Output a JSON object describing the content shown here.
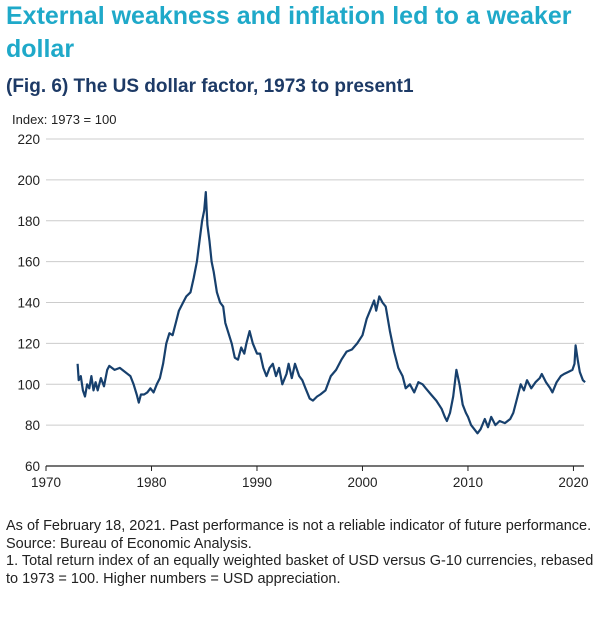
{
  "headline": "External weakness and inflation led to a weaker dollar",
  "chart_data": {
    "type": "line",
    "title": "(Fig. 6) The US dollar factor, 1973 to present1",
    "ylabel": "Index: 1973 = 100",
    "xlabel": "",
    "xlim": [
      1970,
      2021
    ],
    "ylim": [
      60,
      220
    ],
    "xticks": [
      1970,
      1980,
      1990,
      2000,
      2010,
      2020
    ],
    "yticks": [
      60,
      80,
      100,
      120,
      140,
      160,
      180,
      200,
      220
    ],
    "grid": "horizontal",
    "legend": "none",
    "colors": {
      "line": "#17406d",
      "grid": "#cccccc",
      "axis": "#222222"
    },
    "series": [
      {
        "values": [
          [
            1973.0,
            110
          ],
          [
            1973.1,
            102
          ],
          [
            1973.3,
            104
          ],
          [
            1973.5,
            97
          ],
          [
            1973.7,
            94
          ],
          [
            1973.9,
            100
          ],
          [
            1974.1,
            98
          ],
          [
            1974.3,
            104
          ],
          [
            1974.5,
            97
          ],
          [
            1974.7,
            101
          ],
          [
            1974.9,
            97
          ],
          [
            1975.2,
            103
          ],
          [
            1975.5,
            99
          ],
          [
            1975.8,
            107
          ],
          [
            1976.0,
            109
          ],
          [
            1976.5,
            107
          ],
          [
            1977.0,
            108
          ],
          [
            1977.5,
            106
          ],
          [
            1978.0,
            104
          ],
          [
            1978.3,
            100
          ],
          [
            1978.6,
            95
          ],
          [
            1978.8,
            91
          ],
          [
            1979.0,
            95
          ],
          [
            1979.3,
            95
          ],
          [
            1979.6,
            96
          ],
          [
            1979.9,
            98
          ],
          [
            1980.2,
            96
          ],
          [
            1980.5,
            100
          ],
          [
            1980.8,
            103
          ],
          [
            1981.1,
            110
          ],
          [
            1981.4,
            120
          ],
          [
            1981.7,
            125
          ],
          [
            1982.0,
            124
          ],
          [
            1982.3,
            130
          ],
          [
            1982.6,
            136
          ],
          [
            1983.0,
            140
          ],
          [
            1983.3,
            143
          ],
          [
            1983.7,
            145
          ],
          [
            1984.0,
            152
          ],
          [
            1984.3,
            160
          ],
          [
            1984.6,
            172
          ],
          [
            1984.8,
            180
          ],
          [
            1985.0,
            185
          ],
          [
            1985.15,
            194
          ],
          [
            1985.3,
            178
          ],
          [
            1985.5,
            170
          ],
          [
            1985.7,
            160
          ],
          [
            1985.9,
            155
          ],
          [
            1986.2,
            145
          ],
          [
            1986.5,
            140
          ],
          [
            1986.8,
            138
          ],
          [
            1987.0,
            130
          ],
          [
            1987.3,
            125
          ],
          [
            1987.6,
            120
          ],
          [
            1987.9,
            113
          ],
          [
            1988.2,
            112
          ],
          [
            1988.5,
            118
          ],
          [
            1988.8,
            115
          ],
          [
            1989.0,
            120
          ],
          [
            1989.3,
            126
          ],
          [
            1989.6,
            120
          ],
          [
            1990.0,
            115
          ],
          [
            1990.3,
            115
          ],
          [
            1990.6,
            108
          ],
          [
            1990.9,
            104
          ],
          [
            1991.2,
            108
          ],
          [
            1991.5,
            110
          ],
          [
            1991.8,
            104
          ],
          [
            1992.1,
            108
          ],
          [
            1992.4,
            100
          ],
          [
            1992.8,
            105
          ],
          [
            1993.0,
            110
          ],
          [
            1993.3,
            103
          ],
          [
            1993.6,
            110
          ],
          [
            1994.0,
            104
          ],
          [
            1994.3,
            102
          ],
          [
            1994.6,
            98
          ],
          [
            1995.0,
            93
          ],
          [
            1995.3,
            92
          ],
          [
            1995.7,
            94
          ],
          [
            1996.0,
            95
          ],
          [
            1996.5,
            97
          ],
          [
            1997.0,
            104
          ],
          [
            1997.5,
            107
          ],
          [
            1998.0,
            112
          ],
          [
            1998.5,
            116
          ],
          [
            1999.0,
            117
          ],
          [
            1999.5,
            120
          ],
          [
            2000.0,
            124
          ],
          [
            2000.4,
            132
          ],
          [
            2000.8,
            137
          ],
          [
            2001.1,
            141
          ],
          [
            2001.3,
            136
          ],
          [
            2001.6,
            143
          ],
          [
            2001.9,
            140
          ],
          [
            2002.2,
            138
          ],
          [
            2002.6,
            126
          ],
          [
            2003.0,
            116
          ],
          [
            2003.4,
            108
          ],
          [
            2003.8,
            104
          ],
          [
            2004.1,
            98
          ],
          [
            2004.5,
            100
          ],
          [
            2004.9,
            96
          ],
          [
            2005.3,
            101
          ],
          [
            2005.7,
            100
          ],
          [
            2006.0,
            98
          ],
          [
            2006.5,
            95
          ],
          [
            2007.0,
            92
          ],
          [
            2007.5,
            88
          ],
          [
            2007.8,
            84
          ],
          [
            2008.0,
            82
          ],
          [
            2008.3,
            86
          ],
          [
            2008.6,
            94
          ],
          [
            2008.9,
            107
          ],
          [
            2009.2,
            100
          ],
          [
            2009.5,
            90
          ],
          [
            2009.8,
            86
          ],
          [
            2010.0,
            84
          ],
          [
            2010.3,
            80
          ],
          [
            2010.6,
            78
          ],
          [
            2010.9,
            76
          ],
          [
            2011.2,
            78
          ],
          [
            2011.6,
            83
          ],
          [
            2011.9,
            79
          ],
          [
            2012.2,
            84
          ],
          [
            2012.6,
            80
          ],
          [
            2013.0,
            82
          ],
          [
            2013.5,
            81
          ],
          [
            2014.0,
            83
          ],
          [
            2014.3,
            86
          ],
          [
            2014.6,
            92
          ],
          [
            2015.0,
            100
          ],
          [
            2015.3,
            97
          ],
          [
            2015.6,
            102
          ],
          [
            2016.0,
            98
          ],
          [
            2016.4,
            101
          ],
          [
            2016.8,
            103
          ],
          [
            2017.0,
            105
          ],
          [
            2017.4,
            101
          ],
          [
            2017.8,
            98
          ],
          [
            2018.0,
            96
          ],
          [
            2018.4,
            101
          ],
          [
            2018.8,
            104
          ],
          [
            2019.1,
            105
          ],
          [
            2019.5,
            106
          ],
          [
            2019.9,
            107
          ],
          [
            2020.1,
            110
          ],
          [
            2020.2,
            119
          ],
          [
            2020.4,
            112
          ],
          [
            2020.6,
            106
          ],
          [
            2020.9,
            102
          ],
          [
            2021.1,
            101
          ]
        ]
      }
    ]
  },
  "notes": {
    "line1": "As of February 18, 2021. Past performance is not a reliable indicator of future performance.",
    "line2": "Source: Bureau of Economic Analysis.",
    "line3": "1. Total return index of an equally weighted basket of USD versus G-10 currencies, rebased to 1973 = 100. Higher numbers = USD appreciation."
  }
}
